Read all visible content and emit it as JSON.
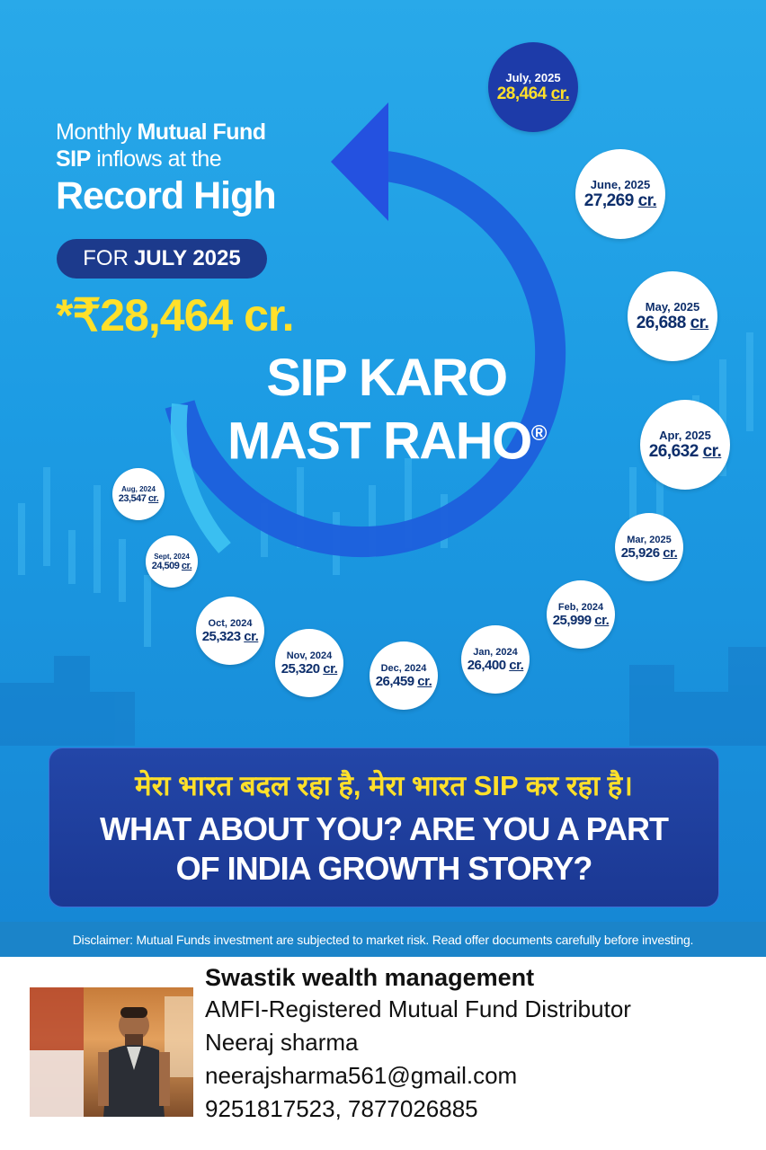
{
  "poster": {
    "headline": {
      "line1_pre": "Monthly ",
      "line1_bold": "Mutual Fund",
      "line2_bold": "SIP",
      "line2_post": " inflows at the",
      "line3": "Record High"
    },
    "period_pill": {
      "pre": "FOR",
      "bold": "JULY 2025"
    },
    "amount": "*₹28,464 cr.",
    "slogan": {
      "line1": "SIP KARO",
      "line2": "MAST RAHO",
      "mark": "®"
    },
    "colors": {
      "background": "#1f9fe6",
      "accent_yellow": "#ffe02a",
      "navy": "#1c3a8c",
      "arrow_blue": "#2b4fd8"
    },
    "timeline_unit": "cr.",
    "timeline": [
      {
        "month": "Aug, 2024",
        "value": "23,547"
      },
      {
        "month": "Sept, 2024",
        "value": "24,509"
      },
      {
        "month": "Oct, 2024",
        "value": "25,323"
      },
      {
        "month": "Nov, 2024",
        "value": "25,320"
      },
      {
        "month": "Dec, 2024",
        "value": "26,459"
      },
      {
        "month": "Jan, 2024",
        "value": "26,400"
      },
      {
        "month": "Feb, 2024",
        "value": "25,999"
      },
      {
        "month": "Mar, 2025",
        "value": "25,926"
      },
      {
        "month": "Apr, 2025",
        "value": "26,632"
      },
      {
        "month": "May, 2025",
        "value": "26,688"
      },
      {
        "month": "June, 2025",
        "value": "27,269"
      },
      {
        "month": "July, 2025",
        "value": "28,464"
      }
    ],
    "banner": {
      "hindi": "मेरा भारत बदल रहा है, मेरा भारत SIP कर रहा है।",
      "english_line1": "WHAT ABOUT YOU? ARE YOU A PART",
      "english_line2": "OF INDIA GROWTH STORY?"
    },
    "disclaimer": "Disclaimer: Mutual Funds investment are subjected to market risk. Read offer documents carefully before investing."
  },
  "footer": {
    "photo_icon": "distributor-photo",
    "firm": "Swastik wealth management",
    "registration": "AMFI-Registered Mutual Fund Distributor",
    "name": "Neeraj sharma",
    "email": "neerajsharma561@gmail.com",
    "phones": "9251817523, 7877026885"
  }
}
